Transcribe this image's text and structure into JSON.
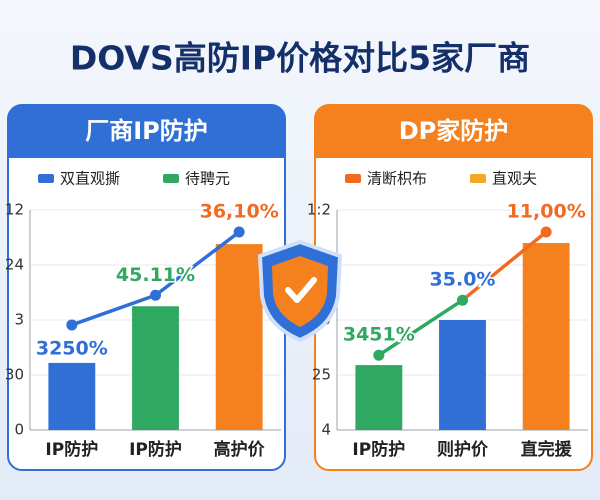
{
  "title": "DOVS高防IP价格对比5家厂商",
  "chart_data": [
    {
      "type": "bar-line",
      "title": "厂商IP防护",
      "header_color": "#2f6fd6",
      "categories": [
        "IP防护",
        "IP防护",
        "高护价"
      ],
      "ylim": [
        0,
        4
      ],
      "yticks": [
        {
          "value": 0,
          "label": "0"
        },
        {
          "value": 1,
          "label": "30"
        },
        {
          "value": 2,
          "label": "3"
        },
        {
          "value": 3,
          "label": "24"
        },
        {
          "value": 4,
          "label": "12"
        }
      ],
      "grid": true,
      "series": [
        {
          "name": "双直观撕",
          "type": "line",
          "color": "#2f6fd6",
          "values": [
            1.91,
            2.45,
            3.6
          ],
          "value_labels": [
            "3250%",
            "45.11%",
            "36,10%"
          ],
          "label_colors": [
            "#2f6fd6",
            "#2fa862",
            "#f26a21"
          ]
        },
        {
          "name": "待聘元",
          "type": "bar",
          "color": "#2fa862",
          "colors": [
            "#2f6fd6",
            "#2fa862",
            "#f5801e"
          ],
          "values": [
            1.22,
            2.25,
            3.38
          ]
        }
      ]
    },
    {
      "type": "bar-line",
      "title": "DP家防护",
      "header_color": "#f5801e",
      "categories": [
        "IP防护",
        "则护价",
        "直完援"
      ],
      "ylim": [
        0,
        4
      ],
      "yticks": [
        {
          "value": 0,
          "label": "4"
        },
        {
          "value": 1,
          "label": "25"
        },
        {
          "value": 2,
          "label": "5"
        },
        {
          "value": 3,
          "label": ":"
        },
        {
          "value": 4,
          "label": "1:2"
        }
      ],
      "grid": true,
      "series": [
        {
          "name": "清断枳布",
          "type": "line",
          "color": "#f26a21",
          "segment_colors": [
            "#2fa862",
            "#f26a21"
          ],
          "values": [
            1.36,
            2.36,
            3.6
          ],
          "value_labels": [
            "3451%",
            "35.0%",
            "11,00%"
          ],
          "label_colors": [
            "#2fa862",
            "#2f6fd6",
            "#f26a21"
          ]
        },
        {
          "name": "直观夫",
          "type": "bar",
          "color": "#f5a623",
          "colors": [
            "#2fa862",
            "#2f6fd6",
            "#f5801e"
          ],
          "values": [
            1.18,
            2.0,
            3.4
          ]
        }
      ]
    }
  ]
}
